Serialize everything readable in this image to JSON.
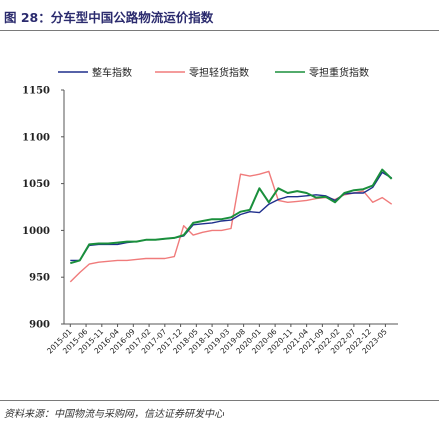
{
  "figure": {
    "title": "图 28：分车型中国公路物流运价指数",
    "source": "资料来源：中国物流与采购网，信达证券研发中心"
  },
  "colors": {
    "whole_truck": "#1f2f8c",
    "less_light": "#f07b7b",
    "less_heavy": "#1a8f3c",
    "axis": "#555555",
    "text": "#222222"
  },
  "chart_data": {
    "type": "line",
    "title": "",
    "xlabel": "",
    "ylabel": "",
    "ylim": [
      900,
      1150
    ],
    "yticks": [
      900,
      950,
      1000,
      1050,
      1100,
      1150
    ],
    "grid": false,
    "legend_position": "top",
    "x_tick_labels": [
      "2015-01",
      "2015-06",
      "2015-11",
      "2016-04",
      "2016-09",
      "2017-02",
      "2017-07",
      "2017-12",
      "2018-05",
      "2018-10",
      "2019-03",
      "2019-08",
      "2020-01",
      "2020-06",
      "2020-11",
      "2021-04",
      "2021-09",
      "2022-02",
      "2022-07",
      "2022-12",
      "2023-05"
    ],
    "x": [
      "2015-01",
      "2015-04",
      "2015-07",
      "2015-10",
      "2016-01",
      "2016-04",
      "2016-07",
      "2016-10",
      "2017-01",
      "2017-04",
      "2017-07",
      "2017-10",
      "2018-01",
      "2018-04",
      "2018-07",
      "2018-10",
      "2019-01",
      "2019-04",
      "2019-07",
      "2019-10",
      "2020-01",
      "2020-04",
      "2020-07",
      "2020-10",
      "2021-01",
      "2021-04",
      "2021-07",
      "2021-10",
      "2022-01",
      "2022-04",
      "2022-07",
      "2022-10",
      "2023-01",
      "2023-04",
      "2023-07"
    ],
    "series": [
      {
        "name": "整车指数",
        "color": "#1f2f8c",
        "values": [
          968,
          968,
          984,
          985,
          985,
          985,
          987,
          988,
          990,
          990,
          991,
          992,
          994,
          1006,
          1007,
          1008,
          1010,
          1011,
          1017,
          1020,
          1019,
          1028,
          1033,
          1036,
          1036,
          1037,
          1038,
          1037,
          1032,
          1039,
          1040,
          1040,
          1046,
          1062,
          1056
        ]
      },
      {
        "name": "零担轻货指数",
        "color": "#f07b7b",
        "values": [
          945,
          955,
          964,
          966,
          967,
          968,
          968,
          969,
          970,
          970,
          970,
          972,
          1005,
          995,
          998,
          1000,
          1000,
          1002,
          1060,
          1058,
          1060,
          1063,
          1032,
          1030,
          1031,
          1032,
          1034,
          1035,
          1033,
          1038,
          1040,
          1042,
          1030,
          1035,
          1028
        ]
      },
      {
        "name": "零担重货指数",
        "color": "#1a8f3c",
        "values": [
          965,
          968,
          985,
          986,
          986,
          987,
          988,
          988,
          990,
          990,
          991,
          992,
          995,
          1008,
          1010,
          1012,
          1012,
          1014,
          1020,
          1022,
          1045,
          1030,
          1045,
          1040,
          1042,
          1040,
          1035,
          1036,
          1030,
          1040,
          1043,
          1044,
          1048,
          1065,
          1055
        ]
      }
    ]
  }
}
